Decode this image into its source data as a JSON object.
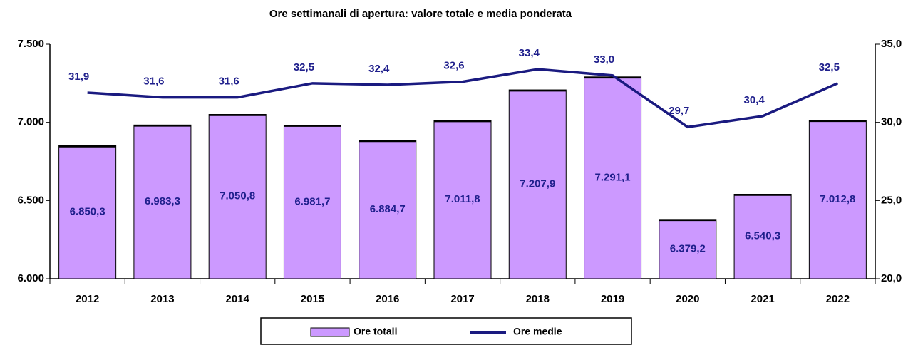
{
  "chart_data": {
    "type": "bar-line",
    "title": "Ore settimanali di apertura: valore totale e media ponderata",
    "categories": [
      "2012",
      "2013",
      "2014",
      "2015",
      "2016",
      "2017",
      "2018",
      "2019",
      "2020",
      "2021",
      "2022"
    ],
    "series": [
      {
        "name": "Ore totali",
        "type": "bar",
        "color": "#cc99ff",
        "axis": "y",
        "values": [
          6850.3,
          6983.3,
          7050.8,
          6981.7,
          6884.7,
          7011.8,
          7207.9,
          7291.1,
          6379.2,
          6540.3,
          7012.8
        ],
        "value_labels": [
          "6.850,3",
          "6.983,3",
          "7.050,8",
          "6.981,7",
          "6.884,7",
          "7.011,8",
          "7.207,9",
          "7.291,1",
          "6.379,2",
          "6.540,3",
          "7.012,8"
        ]
      },
      {
        "name": "Ore medie",
        "type": "line",
        "color": "#1a1a80",
        "axis": "y2",
        "values": [
          31.9,
          31.6,
          31.6,
          32.5,
          32.4,
          32.6,
          33.4,
          33.0,
          29.7,
          30.4,
          32.5
        ],
        "value_labels": [
          "31,9",
          "31,6",
          "31,6",
          "32,5",
          "32,4",
          "32,6",
          "33,4",
          "33,0",
          "29,7",
          "30,4",
          "32,5"
        ]
      }
    ],
    "ylim": [
      6000,
      7500
    ],
    "yticks": [
      {
        "value": 6000,
        "label": "6.000"
      },
      {
        "value": 6500,
        "label": "6.500"
      },
      {
        "value": 7000,
        "label": "7.000"
      },
      {
        "value": 7500,
        "label": "7.500"
      }
    ],
    "y2lim": [
      20,
      35
    ],
    "y2ticks": [
      {
        "value": 20,
        "label": "20,0"
      },
      {
        "value": 25,
        "label": "25,0"
      },
      {
        "value": 30,
        "label": "30,0"
      },
      {
        "value": 35,
        "label": "35,0"
      }
    ],
    "legend": "bottom"
  }
}
